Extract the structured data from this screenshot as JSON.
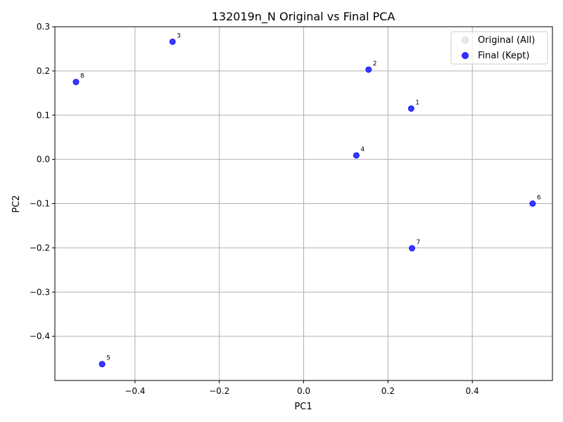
{
  "chart_data": {
    "type": "scatter",
    "title": "132019n_N Original vs Final PCA",
    "xlabel": "PC1",
    "ylabel": "PC2",
    "xlim": [
      -0.59,
      0.59
    ],
    "ylim": [
      -0.5,
      0.3
    ],
    "xticks": [
      -0.4,
      -0.2,
      0.0,
      0.2,
      0.4
    ],
    "xtick_labels": [
      "−0.4",
      "−0.2",
      "0.0",
      "0.2",
      "0.4"
    ],
    "yticks": [
      0.3,
      0.2,
      0.1,
      0.0,
      -0.1,
      -0.2,
      -0.3,
      -0.4
    ],
    "ytick_labels": [
      "0.3",
      "0.2",
      "0.1",
      "0.0",
      "−0.1",
      "−0.2",
      "−0.3",
      "−0.4"
    ],
    "grid": true,
    "legend_position": "top-right",
    "series": [
      {
        "name": "Original (All)",
        "color": "#d9d9d9",
        "points": [
          {
            "label": "1",
            "x": 0.255,
            "y": 0.115
          },
          {
            "label": "2",
            "x": 0.154,
            "y": 0.203
          },
          {
            "label": "3",
            "x": -0.311,
            "y": 0.266
          },
          {
            "label": "4",
            "x": 0.125,
            "y": 0.009
          },
          {
            "label": "5",
            "x": -0.478,
            "y": -0.463
          },
          {
            "label": "6",
            "x": 0.543,
            "y": -0.1
          },
          {
            "label": "7",
            "x": 0.257,
            "y": -0.201
          },
          {
            "label": "8",
            "x": -0.54,
            "y": 0.175
          }
        ]
      },
      {
        "name": "Final (Kept)",
        "color": "#1a1aff",
        "points": [
          {
            "label": "1",
            "x": 0.255,
            "y": 0.115
          },
          {
            "label": "2",
            "x": 0.154,
            "y": 0.203
          },
          {
            "label": "3",
            "x": -0.311,
            "y": 0.266
          },
          {
            "label": "4",
            "x": 0.125,
            "y": 0.009
          },
          {
            "label": "5",
            "x": -0.478,
            "y": -0.463
          },
          {
            "label": "6",
            "x": 0.543,
            "y": -0.1
          },
          {
            "label": "7",
            "x": 0.257,
            "y": -0.201
          },
          {
            "label": "8",
            "x": -0.54,
            "y": 0.175
          }
        ]
      }
    ]
  }
}
